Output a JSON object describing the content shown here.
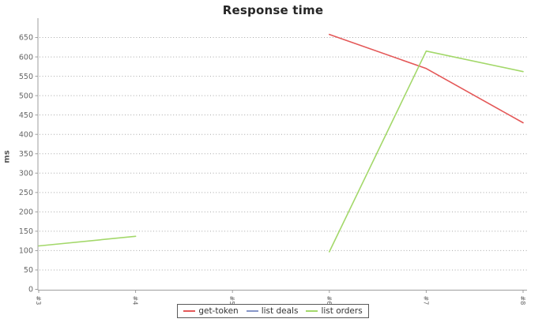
{
  "title": "Response time",
  "colors": {
    "background": "#ffffff",
    "title_text": "#262626",
    "grid": "#a8a8a8",
    "axis": "#9e9e9e",
    "tick_text": "#666666",
    "y_axis_title_text": "#555555",
    "legend_border": "#5a5a5a",
    "legend_text": "#333333",
    "series_get_token": "#e45858",
    "series_list_deals": "#8595c8",
    "series_list_orders": "#a3d86a"
  },
  "chart_data": {
    "type": "line",
    "title": "Response time",
    "xlabel": "",
    "ylabel": "ms",
    "categories": [
      "#3",
      "#4",
      "#5",
      "#6",
      "#7",
      "#8"
    ],
    "y_ticks": [
      0,
      50,
      100,
      150,
      200,
      250,
      300,
      350,
      400,
      450,
      500,
      550,
      600,
      650
    ],
    "ylim": [
      0,
      700
    ],
    "grid": "horizontal-dotted",
    "legend_position": "bottom-center",
    "x_tick_rotation": 90,
    "series": [
      {
        "name": "get-token",
        "color": "#e45858",
        "values": [
          null,
          null,
          null,
          658,
          570,
          430
        ]
      },
      {
        "name": "list deals",
        "color": "#8595c8",
        "values": [
          null,
          null,
          null,
          null,
          null,
          null
        ]
      },
      {
        "name": "list orders",
        "color": "#a3d86a",
        "values": [
          112,
          137,
          null,
          97,
          615,
          562
        ]
      }
    ]
  }
}
